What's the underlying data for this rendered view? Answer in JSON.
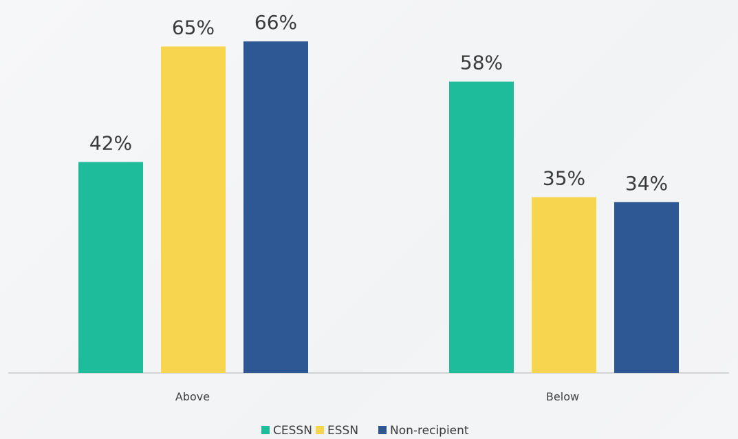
{
  "chart_data": {
    "type": "bar",
    "categories": [
      "Above",
      "Below"
    ],
    "series": [
      {
        "name": "CESSN",
        "values": [
          42,
          58
        ],
        "labels": [
          "42%",
          "58%"
        ],
        "color": "#1fbc9c"
      },
      {
        "name": "ESSN",
        "values": [
          65,
          35
        ],
        "labels": [
          "65%",
          "35%"
        ],
        "color": "#f8d54f"
      },
      {
        "name": "Non-recipient",
        "values": [
          66,
          34
        ],
        "labels": [
          "66%",
          "34%"
        ],
        "color": "#2e5893"
      }
    ],
    "ylim": [
      0,
      100
    ],
    "unit": "%",
    "grid": false,
    "legend_position": "bottom"
  },
  "colors": {
    "axis": "#c8c8c8"
  }
}
